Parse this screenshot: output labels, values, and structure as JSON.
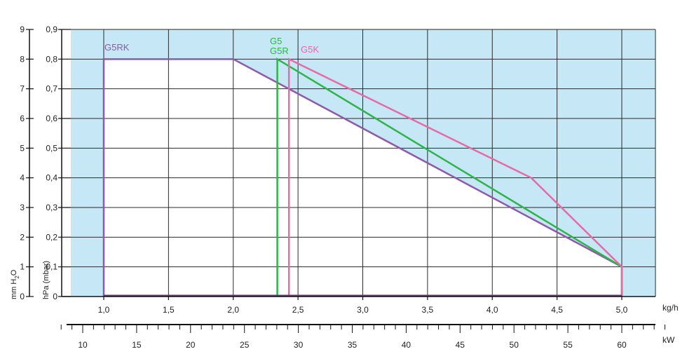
{
  "chart_data": {
    "type": "area",
    "x_unit": "kg/h",
    "x2_unit": "kW",
    "y_left_title": "mm H2O",
    "y_left_title_main": "mm H",
    "y_left_title_sub": "2",
    "y_left_title_end": "O",
    "y_right_title": "hPa (mbar)",
    "xlim": [
      0.75,
      5.25
    ],
    "ylim": [
      0,
      0.9
    ],
    "x_ticks": [
      1.0,
      1.5,
      2.0,
      2.5,
      3.0,
      3.5,
      4.0,
      4.5,
      5.0
    ],
    "x_tick_labels": [
      "1,0",
      "1,5",
      "2,0",
      "2,5",
      "3,0",
      "3,5",
      "4,0",
      "4,5",
      "5,0"
    ],
    "y_ticks": [
      0,
      0.1,
      0.2,
      0.3,
      0.4,
      0.5,
      0.6,
      0.7,
      0.8,
      0.9
    ],
    "y_tick_labels": [
      "0",
      "0,1",
      "0,2",
      "0,3",
      "0,4",
      "0,5",
      "0,6",
      "0,7",
      "0,8",
      "0,9"
    ],
    "y2_tick_labels": [
      "0",
      "1",
      "2",
      "3",
      "4",
      "5",
      "6",
      "7",
      "8",
      "9"
    ],
    "kw_range": [
      8,
      64
    ],
    "kw_ticks": [
      10,
      15,
      20,
      25,
      30,
      35,
      40,
      45,
      50,
      55,
      60
    ],
    "kw_tick_labels": [
      "10",
      "15",
      "20",
      "25",
      "30",
      "35",
      "40",
      "45",
      "50",
      "55",
      "60"
    ],
    "grid": true,
    "background_color": "#c6e7f6",
    "series": [
      {
        "name": "G5RK",
        "color": "#8e5aa8",
        "x": [
          1.0,
          1.0,
          2.0,
          5.0,
          5.0
        ],
        "y": [
          0.0,
          0.8,
          0.8,
          0.1,
          0.0
        ]
      },
      {
        "name": "G5",
        "color": "#2fb34a",
        "x": [
          2.34,
          2.34,
          5.0,
          5.0
        ],
        "y": [
          0.0,
          0.8,
          0.1,
          0.0
        ]
      },
      {
        "name": "G5R",
        "color": "#2fb34a",
        "x": [
          2.34,
          2.34,
          5.0,
          5.0
        ],
        "y": [
          0.0,
          0.8,
          0.1,
          0.0
        ]
      },
      {
        "name": "G5K",
        "color": "#e56aa5",
        "x": [
          2.43,
          2.43,
          4.3,
          5.0,
          5.0
        ],
        "y": [
          0.0,
          0.8,
          0.4,
          0.1,
          0.0
        ]
      }
    ]
  }
}
